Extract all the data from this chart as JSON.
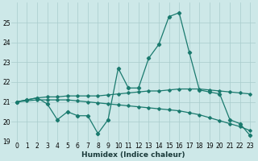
{
  "title": "",
  "xlabel": "Humidex (Indice chaleur)",
  "x": [
    0,
    1,
    2,
    3,
    4,
    5,
    6,
    7,
    8,
    9,
    10,
    11,
    12,
    13,
    14,
    15,
    16,
    17,
    18,
    19,
    20,
    21,
    22,
    23
  ],
  "y_main": [
    21.0,
    21.1,
    21.2,
    20.9,
    20.1,
    20.5,
    20.3,
    20.3,
    19.4,
    20.1,
    22.7,
    21.7,
    21.7,
    23.2,
    23.9,
    25.3,
    25.5,
    23.5,
    21.6,
    21.5,
    21.4,
    20.1,
    19.9,
    19.3
  ],
  "y_upper": [
    21.0,
    21.1,
    21.2,
    21.25,
    21.25,
    21.3,
    21.3,
    21.3,
    21.3,
    21.35,
    21.4,
    21.45,
    21.5,
    21.55,
    21.55,
    21.6,
    21.65,
    21.65,
    21.65,
    21.6,
    21.55,
    21.5,
    21.45,
    21.4
  ],
  "y_lower": [
    21.0,
    21.05,
    21.1,
    21.1,
    21.1,
    21.1,
    21.05,
    21.0,
    20.95,
    20.9,
    20.85,
    20.8,
    20.75,
    20.7,
    20.65,
    20.6,
    20.55,
    20.45,
    20.35,
    20.2,
    20.05,
    19.9,
    19.75,
    19.55
  ],
  "color": "#1a7a6e",
  "bg_color": "#cde8e8",
  "grid_color": "#a8cccc",
  "ylim": [
    19,
    26
  ],
  "yticks": [
    19,
    20,
    21,
    22,
    23,
    24,
    25
  ],
  "xticks": [
    0,
    1,
    2,
    3,
    4,
    5,
    6,
    7,
    8,
    9,
    10,
    11,
    12,
    13,
    14,
    15,
    16,
    17,
    18,
    19,
    20,
    21,
    22,
    23
  ],
  "tick_fontsize": 5.5,
  "xlabel_fontsize": 6.5,
  "linewidth": 0.9,
  "markersize": 2.2
}
